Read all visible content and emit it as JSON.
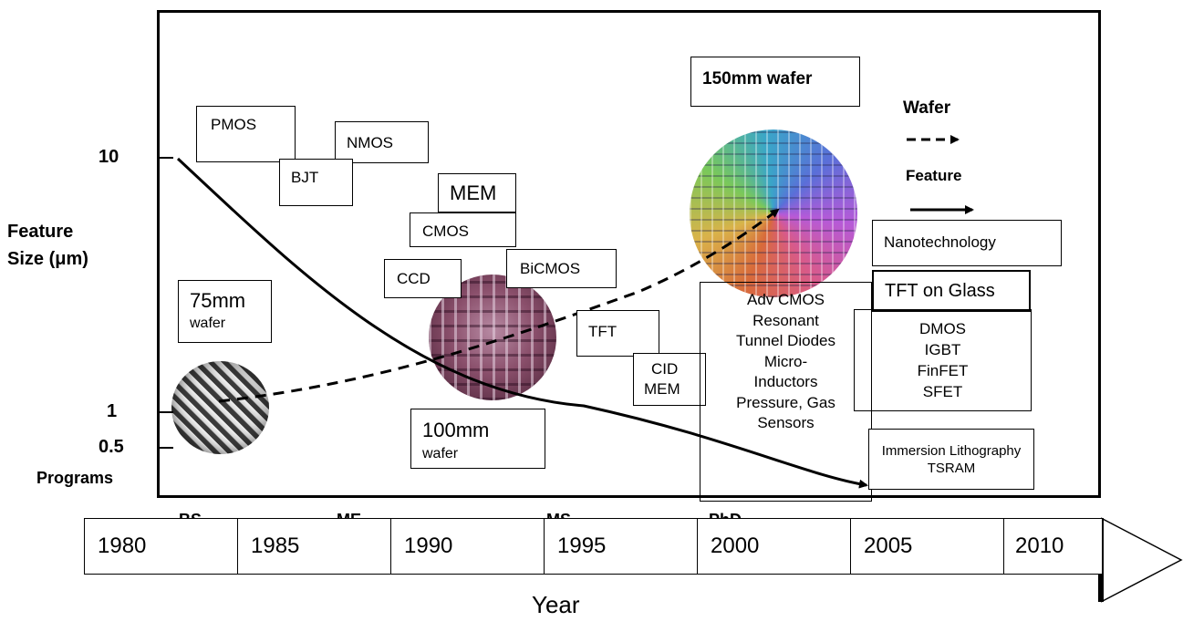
{
  "axis": {
    "ylabel_line1": "Feature",
    "ylabel_line2": "Size (μm)",
    "ticks": [
      "10",
      "1",
      "0.5"
    ],
    "programs_label": "Programs",
    "xlabel": "Year"
  },
  "programs": [
    "BS",
    "ME",
    "MS",
    "PhD"
  ],
  "years": [
    "1980",
    "1985",
    "1990",
    "1995",
    "2000",
    "2005",
    "2010"
  ],
  "technologies": {
    "pmos": "PMOS",
    "nmos": "NMOS",
    "bjt": "BJT",
    "mem": "MEM",
    "cmos": "CMOS",
    "ccd": "CCD",
    "bicmos": "BiCMOS",
    "tft": "TFT",
    "cid": "CID",
    "cid_mem": "MEM",
    "nanotech": "Nanotechnology",
    "tft_glass": "TFT on Glass",
    "advanced": [
      "Adv CMOS",
      "Resonant",
      "Tunnel Diodes",
      "Micro-",
      "Inductors",
      "Pressure, Gas",
      "Sensors"
    ],
    "power": [
      "DMOS",
      "IGBT",
      "FinFET",
      "SFET"
    ],
    "litho_line1": "Immersion Lithography",
    "litho_line2": "TSRAM"
  },
  "wafers": {
    "w75_size": "75mm",
    "w75_word": "wafer",
    "w100_size": "100mm",
    "w100_word": "wafer",
    "w150": "150mm wafer"
  },
  "legend": {
    "wafer": "Wafer",
    "feature": "Feature"
  }
}
